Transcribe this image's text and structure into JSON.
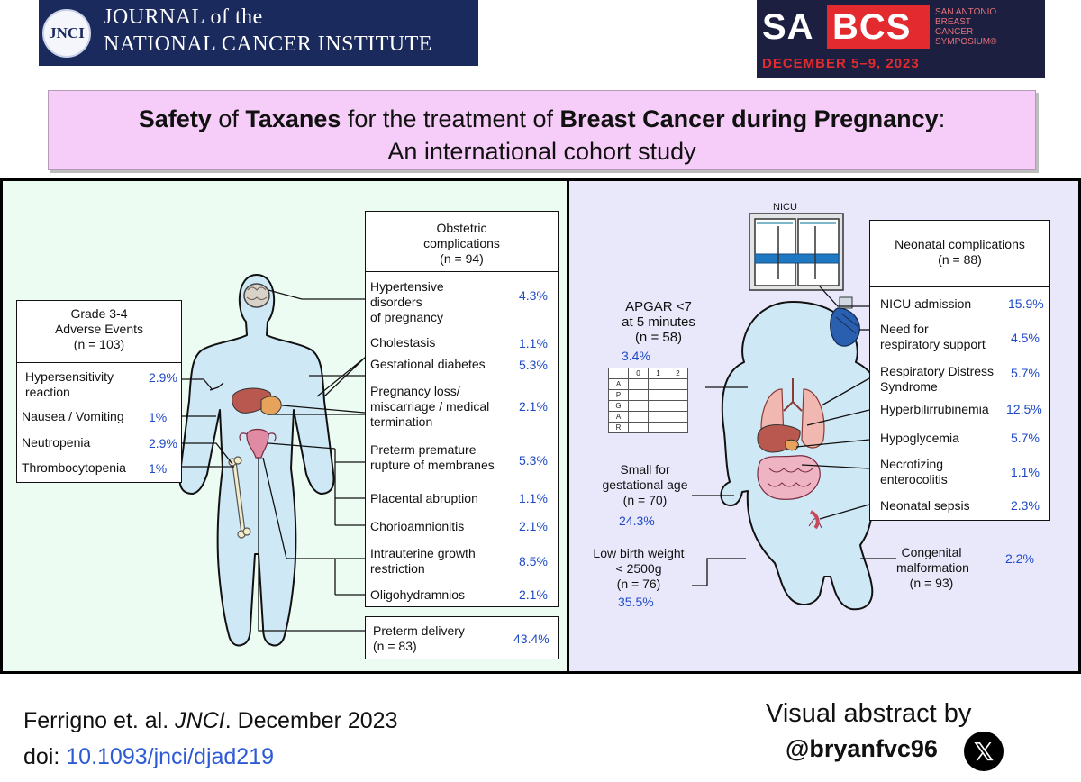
{
  "header": {
    "jnci": {
      "seal": "JNCI",
      "line1": "JOURNAL of the",
      "line2": "NATIONAL CANCER INSTITUTE"
    },
    "sabcs": {
      "sa": "SA",
      "bcs": "BCS",
      "subtitle": "SAN ANTONIO\nBREAST\nCANCER\nSYMPOSIUM®",
      "date": "DECEMBER 5–9, 2023"
    }
  },
  "title": {
    "w1": "Safety",
    "w2": " of ",
    "w3": "Taxanes",
    "w4": " for the treatment of ",
    "w5": "Breast Cancer during Pregnancy",
    "w6": ":",
    "line2": "An international cohort study"
  },
  "adverse_events": {
    "header": "Grade 3-4\nAdverse Events\n(n = 103)",
    "items": [
      {
        "label": "Hypersensitivity\n      reaction",
        "pct": "2.9%"
      },
      {
        "label": "Nausea / Vomiting",
        "pct": "1%"
      },
      {
        "label": "Neutropenia",
        "pct": "2.9%"
      },
      {
        "label": "Thrombocytopenia",
        "pct": "1%"
      }
    ]
  },
  "obstetric": {
    "header": "Obstetric\ncomplications\n(n = 94)",
    "items": [
      {
        "label": "Hypertensive\ndisorders\nof pregnancy",
        "pct": "4.3%"
      },
      {
        "label": "Cholestasis",
        "pct": "1.1%"
      },
      {
        "label": "Gestational diabetes",
        "pct": "5.3%"
      },
      {
        "label": "Pregnancy loss/\nmiscarriage / medical\ntermination",
        "pct": "2.1%"
      },
      {
        "label": "Preterm premature\nrupture of membranes",
        "pct": "5.3%"
      },
      {
        "label": "Placental abruption",
        "pct": "1.1%"
      },
      {
        "label": "Chorioamnionitis",
        "pct": "2.1%"
      },
      {
        "label": "Intrauterine growth\nrestriction",
        "pct": "8.5%"
      },
      {
        "label": "Oligohydramnios",
        "pct": "2.1%"
      }
    ],
    "preterm": {
      "label": "Preterm delivery\n      (n = 83)",
      "pct": "43.4%"
    }
  },
  "neonatal": {
    "nicu_label": "NICU",
    "header": "Neonatal complications\n(n = 88)",
    "items": [
      {
        "label": "NICU admission",
        "pct": "15.9%"
      },
      {
        "label": "Need for\nrespiratory support",
        "pct": "4.5%"
      },
      {
        "label": "Respiratory Distress\nSyndrome",
        "pct": "5.7%"
      },
      {
        "label": "Hyperbilirrubinemia",
        "pct": "12.5%"
      },
      {
        "label": "Hypoglycemia",
        "pct": "5.7%"
      },
      {
        "label": "Necrotizing\nenterocolitis",
        "pct": "1.1%"
      },
      {
        "label": "Neonatal sepsis",
        "pct": "2.3%"
      }
    ],
    "apgar": {
      "label": "APGAR <7\nat 5 minutes\n(n = 58)",
      "pct": "3.4%",
      "cols": [
        "",
        "0",
        "1",
        "2"
      ],
      "rows": [
        "A",
        "P",
        "G",
        "A",
        "R"
      ]
    },
    "sga": {
      "label": "Small for\ngestational age\n(n = 70)",
      "pct": "24.3%"
    },
    "lbw": {
      "label": "Low birth weight\n< 2500g\n(n = 76)",
      "pct": "35.5%"
    },
    "congenital": {
      "label": "Congenital\nmalformation\n(n = 93)",
      "pct": "2.2%"
    }
  },
  "footer": {
    "cite_authors": "Ferrigno et. al. ",
    "cite_journal": "JNCI",
    "cite_date": ". December 2023",
    "doi_prefix": "doi: ",
    "doi": "10.1093/jnci/djad219",
    "visual_by": "Visual abstract by",
    "handle": "@bryanfvc96",
    "x_glyph": "𝕏"
  }
}
